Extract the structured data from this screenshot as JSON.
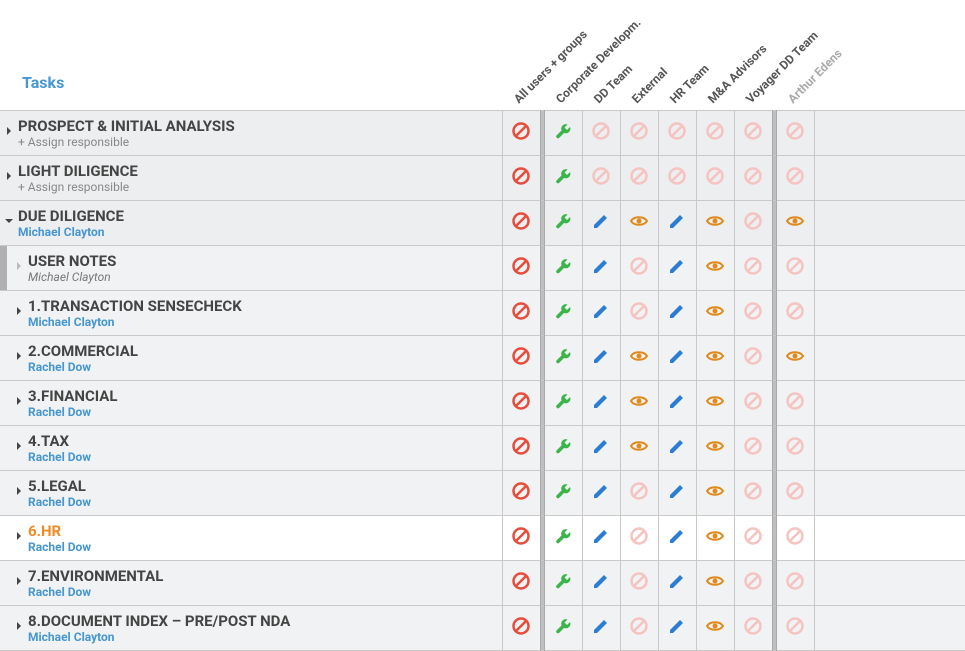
{
  "header": {
    "tasks_label": "Tasks"
  },
  "columns": [
    {
      "label": "All users + groups",
      "dim": false
    },
    {
      "label": "Corporate Developm.",
      "dim": false
    },
    {
      "label": "DD Team",
      "dim": false
    },
    {
      "label": "External",
      "dim": false
    },
    {
      "label": "HR Team",
      "dim": false
    },
    {
      "label": "M&A Advisors",
      "dim": false
    },
    {
      "label": "Voyager DD Team",
      "dim": false
    },
    {
      "label": "Arthur Edens",
      "dim": true
    }
  ],
  "perm_types": {
    "deny": {
      "color": "#e74c3c"
    },
    "deny_dim": {
      "color": "#f5c3c0"
    },
    "admin": {
      "color": "#3bb44a"
    },
    "edit": {
      "color": "#2b7cd3"
    },
    "view": {
      "color": "#e08a1e"
    }
  },
  "assign_placeholder": "+ Assign responsible",
  "tasks": [
    {
      "id": "prospect",
      "title": "PROSPECT & INITIAL ANALYSIS",
      "assignee": null,
      "expanded": false,
      "nested": false,
      "shaded": true,
      "dim_chevron": false,
      "perms": [
        "deny",
        "admin",
        "deny_dim",
        "deny_dim",
        "deny_dim",
        "deny_dim",
        "deny_dim",
        "deny_dim"
      ]
    },
    {
      "id": "light",
      "title": "LIGHT DILIGENCE",
      "assignee": null,
      "expanded": false,
      "nested": false,
      "shaded": true,
      "dim_chevron": false,
      "perms": [
        "deny",
        "admin",
        "deny_dim",
        "deny_dim",
        "deny_dim",
        "deny_dim",
        "deny_dim",
        "deny_dim"
      ]
    },
    {
      "id": "due",
      "title": "DUE DILIGENCE",
      "assignee": "Michael Clayton",
      "expanded": true,
      "nested": false,
      "shaded": true,
      "dim_chevron": false,
      "perms": [
        "deny",
        "admin",
        "edit",
        "view",
        "edit",
        "view",
        "deny_dim",
        "view"
      ]
    },
    {
      "id": "notes",
      "title": "USER NOTES",
      "assignee": "Michael Clayton",
      "assignee_italic": true,
      "expanded": false,
      "nested": true,
      "shaded": "child",
      "dim_chevron": true,
      "left_rail": true,
      "perms": [
        "deny",
        "admin",
        "edit",
        "deny_dim",
        "edit",
        "view",
        "deny_dim",
        "deny_dim"
      ]
    },
    {
      "id": "trans",
      "title": "1.TRANSACTION SENSECHECK",
      "assignee": "Michael Clayton",
      "expanded": false,
      "nested": true,
      "shaded": "child",
      "dim_chevron": false,
      "perms": [
        "deny",
        "admin",
        "edit",
        "deny_dim",
        "edit",
        "view",
        "deny_dim",
        "deny_dim"
      ]
    },
    {
      "id": "comm",
      "title": "2.COMMERCIAL",
      "assignee": "Rachel Dow",
      "expanded": false,
      "nested": true,
      "shaded": "child",
      "dim_chevron": false,
      "perms": [
        "deny",
        "admin",
        "edit",
        "view",
        "edit",
        "view",
        "deny_dim",
        "view"
      ]
    },
    {
      "id": "fin",
      "title": "3.FINANCIAL",
      "assignee": "Rachel Dow",
      "expanded": false,
      "nested": true,
      "shaded": "child",
      "dim_chevron": false,
      "perms": [
        "deny",
        "admin",
        "edit",
        "view",
        "edit",
        "view",
        "deny_dim",
        "deny_dim"
      ]
    },
    {
      "id": "tax",
      "title": "4.TAX",
      "assignee": "Rachel Dow",
      "expanded": false,
      "nested": true,
      "shaded": "child",
      "dim_chevron": false,
      "perms": [
        "deny",
        "admin",
        "edit",
        "view",
        "edit",
        "view",
        "deny_dim",
        "deny_dim"
      ]
    },
    {
      "id": "legal",
      "title": "5.LEGAL",
      "assignee": "Rachel Dow",
      "expanded": false,
      "nested": true,
      "shaded": "child",
      "dim_chevron": false,
      "perms": [
        "deny",
        "admin",
        "edit",
        "deny_dim",
        "edit",
        "view",
        "deny_dim",
        "deny_dim"
      ]
    },
    {
      "id": "hr",
      "title": "6.HR",
      "assignee": "Rachel Dow",
      "expanded": false,
      "nested": true,
      "shaded": false,
      "highlight": true,
      "dim_chevron": false,
      "perms": [
        "deny",
        "admin",
        "edit",
        "deny_dim",
        "edit",
        "view",
        "deny_dim",
        "deny_dim"
      ]
    },
    {
      "id": "env",
      "title": "7.ENVIRONMENTAL",
      "assignee": "Rachel Dow",
      "expanded": false,
      "nested": true,
      "shaded": "child",
      "dim_chevron": false,
      "perms": [
        "deny",
        "admin",
        "edit",
        "deny_dim",
        "edit",
        "view",
        "deny_dim",
        "deny_dim"
      ]
    },
    {
      "id": "doc",
      "title": "8.DOCUMENT INDEX – PRE/POST NDA",
      "assignee": "Michael Clayton",
      "expanded": false,
      "nested": true,
      "shaded": "child",
      "dim_chevron": false,
      "perms": [
        "deny",
        "admin",
        "edit",
        "deny_dim",
        "edit",
        "view",
        "deny_dim",
        "deny_dim"
      ]
    }
  ]
}
